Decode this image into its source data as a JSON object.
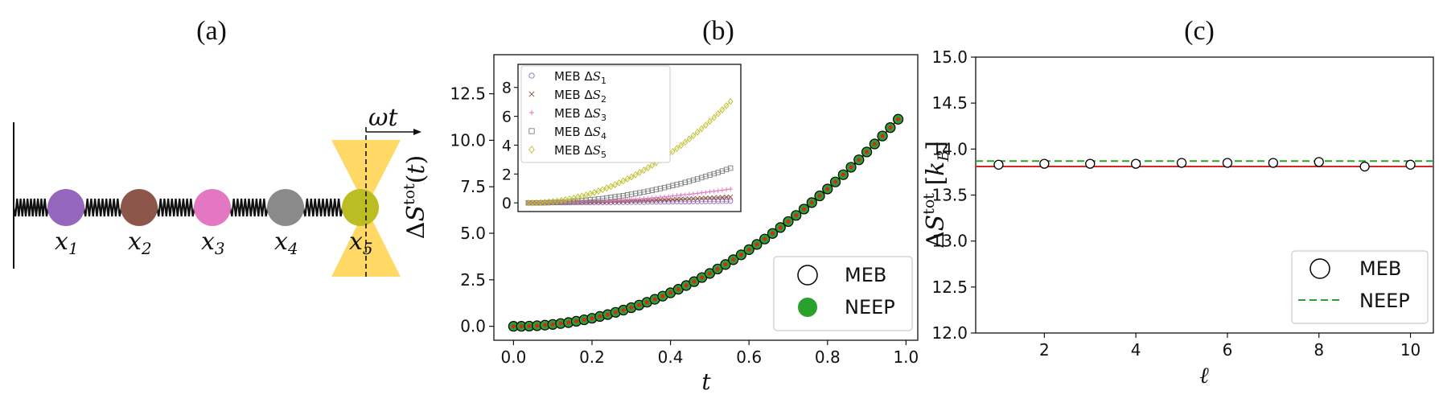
{
  "panels": {
    "a": {
      "label": "(a)",
      "omega_label": "ωt",
      "masses": [
        {
          "label": "x",
          "sub": "1",
          "color": "#9467bd"
        },
        {
          "label": "x",
          "sub": "2",
          "color": "#8c564b"
        },
        {
          "label": "x",
          "sub": "3",
          "color": "#e377c2"
        },
        {
          "label": "x",
          "sub": "4",
          "color": "#8a8a8a"
        },
        {
          "label": "x",
          "sub": "5",
          "color": "#bcbd22"
        }
      ],
      "trap_color": "#ffd866"
    },
    "b": {
      "label": "(b)"
    },
    "c": {
      "label": "(c)"
    }
  },
  "chart_data": [
    {
      "type": "scatter",
      "panel": "b",
      "xlabel": "t",
      "ylabel": "ΔS^tot(t)",
      "xlim": [
        -0.05,
        1.03
      ],
      "ylim": [
        -0.75,
        14.6
      ],
      "xticks": [
        "0.0",
        "0.2",
        "0.4",
        "0.6",
        "0.8",
        "1.0"
      ],
      "yticks": [
        "0.0",
        "2.5",
        "5.0",
        "7.5",
        "10.0",
        "12.5"
      ],
      "x": [
        0.0,
        0.02,
        0.04,
        0.06,
        0.08,
        0.1,
        0.12,
        0.14,
        0.16,
        0.18,
        0.2,
        0.22,
        0.24,
        0.26,
        0.28,
        0.3,
        0.32,
        0.34,
        0.36,
        0.38,
        0.4,
        0.42,
        0.44,
        0.46,
        0.48,
        0.5,
        0.52,
        0.54,
        0.56,
        0.58,
        0.6,
        0.62,
        0.64,
        0.66,
        0.68,
        0.7,
        0.72,
        0.74,
        0.76,
        0.78,
        0.8,
        0.82,
        0.84,
        0.86,
        0.88,
        0.9,
        0.92,
        0.94,
        0.96,
        0.98
      ],
      "series": [
        {
          "name": "MEB",
          "marker": "open-circle",
          "color": "#000000",
          "values": [
            0.0,
            0.0,
            0.01,
            0.03,
            0.06,
            0.1,
            0.15,
            0.2,
            0.27,
            0.35,
            0.43,
            0.53,
            0.63,
            0.75,
            0.87,
            1.0,
            1.14,
            1.29,
            1.45,
            1.62,
            1.8,
            1.99,
            2.19,
            2.4,
            2.62,
            2.84,
            3.08,
            3.32,
            3.58,
            3.84,
            4.12,
            4.4,
            4.69,
            4.99,
            5.31,
            5.63,
            5.96,
            6.3,
            6.65,
            7.01,
            7.38,
            7.76,
            8.15,
            8.55,
            8.95,
            9.37,
            9.8,
            10.23,
            10.68,
            11.13
          ]
        },
        {
          "name": "NEEP",
          "marker": "filled-circle",
          "color": "#2ca02c",
          "values": [
            0.0,
            0.0,
            0.01,
            0.03,
            0.06,
            0.1,
            0.15,
            0.2,
            0.27,
            0.35,
            0.43,
            0.53,
            0.63,
            0.75,
            0.87,
            1.0,
            1.14,
            1.29,
            1.45,
            1.62,
            1.8,
            1.99,
            2.19,
            2.4,
            2.62,
            2.84,
            3.08,
            3.32,
            3.58,
            3.84,
            4.12,
            4.4,
            4.69,
            4.99,
            5.31,
            5.63,
            5.96,
            6.3,
            6.65,
            7.01,
            7.38,
            7.76,
            8.15,
            8.55,
            8.95,
            9.37,
            9.8,
            10.23,
            10.68,
            11.13
          ]
        },
        {
          "name": "",
          "marker": "line",
          "color": "#d62728"
        }
      ],
      "legend": {
        "placement": "bottom-right",
        "entries": [
          "MEB",
          "NEEP"
        ]
      }
    },
    {
      "type": "scatter",
      "panel": "b-inset",
      "xlim": [
        -0.05,
        1.03
      ],
      "ylim": [
        -0.6,
        9.6
      ],
      "yticks": [
        "0",
        "2",
        "4",
        "6",
        "8"
      ],
      "series": [
        {
          "name": "MEB ΔS1",
          "sub": "1",
          "marker": "open-circle",
          "color": "#9467bd",
          "values": [
            0,
            0,
            0,
            0,
            0,
            0,
            0.01,
            0.01,
            0.01,
            0.01,
            0.01,
            0.02,
            0.02,
            0.02,
            0.02,
            0.02,
            0.03,
            0.03,
            0.03,
            0.03,
            0.03,
            0.04,
            0.04,
            0.04,
            0.04,
            0.05,
            0.05,
            0.05,
            0.05,
            0.06,
            0.06,
            0.06,
            0.06,
            0.07,
            0.07,
            0.07,
            0.08,
            0.08,
            0.08,
            0.08,
            0.09,
            0.09,
            0.09,
            0.1,
            0.1,
            0.1,
            0.11,
            0.11,
            0.11,
            0.12
          ]
        },
        {
          "name": "MEB ΔS2",
          "sub": "2",
          "marker": "x",
          "color": "#8c564b",
          "values": [
            0,
            0,
            0,
            0,
            0,
            0,
            0.01,
            0.01,
            0.01,
            0.02,
            0.02,
            0.03,
            0.03,
            0.04,
            0.04,
            0.05,
            0.06,
            0.06,
            0.07,
            0.08,
            0.09,
            0.09,
            0.1,
            0.11,
            0.12,
            0.13,
            0.14,
            0.15,
            0.16,
            0.17,
            0.18,
            0.19,
            0.2,
            0.21,
            0.22,
            0.23,
            0.24,
            0.26,
            0.27,
            0.28,
            0.29,
            0.3,
            0.32,
            0.33,
            0.34,
            0.36,
            0.37,
            0.38,
            0.4,
            0.41
          ]
        },
        {
          "name": "MEB ΔS3",
          "sub": "3",
          "marker": "plus",
          "color": "#e377c2",
          "values": [
            0,
            0,
            0,
            0,
            0,
            0.01,
            0.01,
            0.01,
            0.02,
            0.02,
            0.03,
            0.04,
            0.05,
            0.06,
            0.07,
            0.08,
            0.09,
            0.1,
            0.12,
            0.13,
            0.15,
            0.16,
            0.18,
            0.2,
            0.22,
            0.24,
            0.26,
            0.28,
            0.3,
            0.32,
            0.35,
            0.37,
            0.4,
            0.42,
            0.45,
            0.48,
            0.51,
            0.54,
            0.57,
            0.6,
            0.63,
            0.66,
            0.7,
            0.73,
            0.77,
            0.8,
            0.84,
            0.88,
            0.92,
            0.96
          ]
        },
        {
          "name": "MEB ΔS4",
          "sub": "4",
          "marker": "square",
          "color": "#7f7f7f",
          "values": [
            0,
            0,
            0,
            0,
            0.01,
            0.02,
            0.03,
            0.04,
            0.05,
            0.07,
            0.09,
            0.11,
            0.13,
            0.15,
            0.18,
            0.21,
            0.24,
            0.27,
            0.3,
            0.34,
            0.38,
            0.42,
            0.46,
            0.5,
            0.55,
            0.6,
            0.65,
            0.7,
            0.75,
            0.81,
            0.87,
            0.93,
            0.99,
            1.06,
            1.13,
            1.2,
            1.27,
            1.34,
            1.42,
            1.5,
            1.58,
            1.66,
            1.75,
            1.84,
            1.93,
            2.02,
            2.11,
            2.21,
            2.31,
            2.41
          ]
        },
        {
          "name": "MEB ΔS5",
          "sub": "5",
          "marker": "diamond",
          "color": "#bcbd22",
          "values": [
            0,
            0,
            0.01,
            0.02,
            0.04,
            0.06,
            0.09,
            0.13,
            0.17,
            0.22,
            0.27,
            0.33,
            0.4,
            0.47,
            0.55,
            0.63,
            0.72,
            0.82,
            0.92,
            1.03,
            1.14,
            1.26,
            1.39,
            1.52,
            1.66,
            1.8,
            1.95,
            2.11,
            2.27,
            2.44,
            2.61,
            2.79,
            2.97,
            3.16,
            3.36,
            3.56,
            3.77,
            3.98,
            4.2,
            4.43,
            4.66,
            4.9,
            5.14,
            5.39,
            5.65,
            5.91,
            6.18,
            6.45,
            6.73,
            7.02
          ]
        }
      ]
    },
    {
      "type": "scatter",
      "panel": "c",
      "xlabel": "ℓ",
      "ylabel": "ΔS^tot [k_B]",
      "xlim": [
        0.5,
        10.5
      ],
      "ylim": [
        12.0,
        15.0
      ],
      "xticks": [
        "2",
        "4",
        "6",
        "8",
        "10"
      ],
      "yticks": [
        "12.0",
        "12.5",
        "13.0",
        "13.5",
        "14.0",
        "14.5",
        "15.0"
      ],
      "x": [
        1,
        2,
        3,
        4,
        5,
        6,
        7,
        8,
        9,
        10
      ],
      "series": [
        {
          "name": "MEB",
          "marker": "open-circle",
          "color": "#000000",
          "values": [
            13.83,
            13.84,
            13.84,
            13.84,
            13.85,
            13.85,
            13.85,
            13.86,
            13.81,
            13.83
          ]
        },
        {
          "name": "NEEP",
          "marker": "dashed-line",
          "color": "#2ca02c",
          "value": 13.87
        },
        {
          "name": "",
          "marker": "line",
          "color": "#d62728",
          "value": 13.81
        }
      ],
      "legend": {
        "placement": "bottom-right",
        "entries": [
          "MEB",
          "NEEP"
        ]
      }
    }
  ]
}
